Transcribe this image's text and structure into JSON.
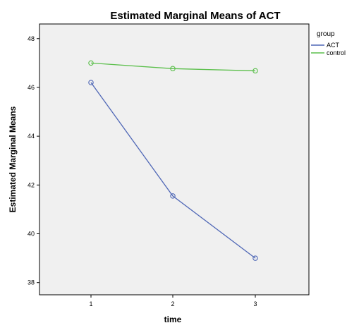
{
  "chart_data": {
    "type": "line",
    "title": "Estimated Marginal Means of ACT",
    "xlabel": "time",
    "ylabel": "Estimated Marginal Means",
    "categories": [
      "1",
      "2",
      "3"
    ],
    "ylim": [
      37.5,
      48.6
    ],
    "yticks": [
      "38",
      "40",
      "42",
      "44",
      "46",
      "48"
    ],
    "grid": false,
    "legend": {
      "title": "group",
      "position": "right"
    },
    "series": [
      {
        "name": "ACT",
        "values": [
          46.2,
          41.55,
          39.0
        ],
        "color": "#4f67b6",
        "marker": "circle"
      },
      {
        "name": "control",
        "values": [
          47.0,
          46.77,
          46.68
        ],
        "color": "#5bbf4b",
        "marker": "circle"
      }
    ],
    "colors": {
      "plot_background": "#f0f0f0",
      "axis": "#000000"
    }
  }
}
